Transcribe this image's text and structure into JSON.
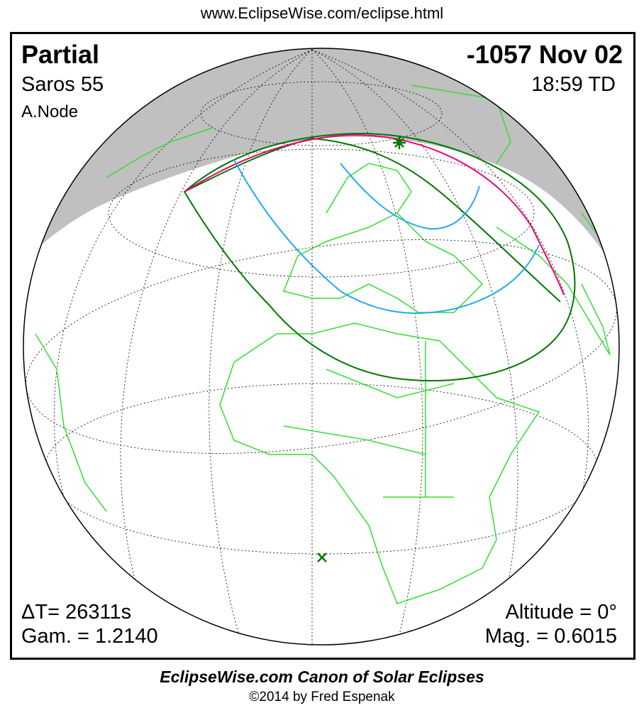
{
  "header": {
    "url": "www.EclipseWise.com/eclipse.html"
  },
  "eclipse": {
    "type": "Partial",
    "saros": "Saros  55",
    "node": "A.Node",
    "date": "-1057 Nov 02",
    "time": "18:59 TD",
    "delta_t": "ΔT=  26311s",
    "gamma": "Gam. = 1.2140",
    "altitude": "Altitude =  0°",
    "magnitude": "Mag. = 0.6015"
  },
  "map": {
    "projection": "orthographic",
    "colors": {
      "night_shade": "#c0c0c0",
      "land_borders": "#33dd33",
      "penumbra_limits": "#007700",
      "max_eclipse_line": "#ee0077",
      "magnitude_curves": "#22aaee",
      "graticule": "#000000"
    },
    "markers": [
      {
        "icon": "greatest-eclipse-star-icon",
        "color": "#007700"
      },
      {
        "icon": "sub-solar-point-x-icon",
        "color": "#007700"
      }
    ]
  },
  "footer": {
    "title": "EclipseWise.com Canon of Solar Eclipses",
    "copyright": "©2014 by Fred Espenak"
  }
}
